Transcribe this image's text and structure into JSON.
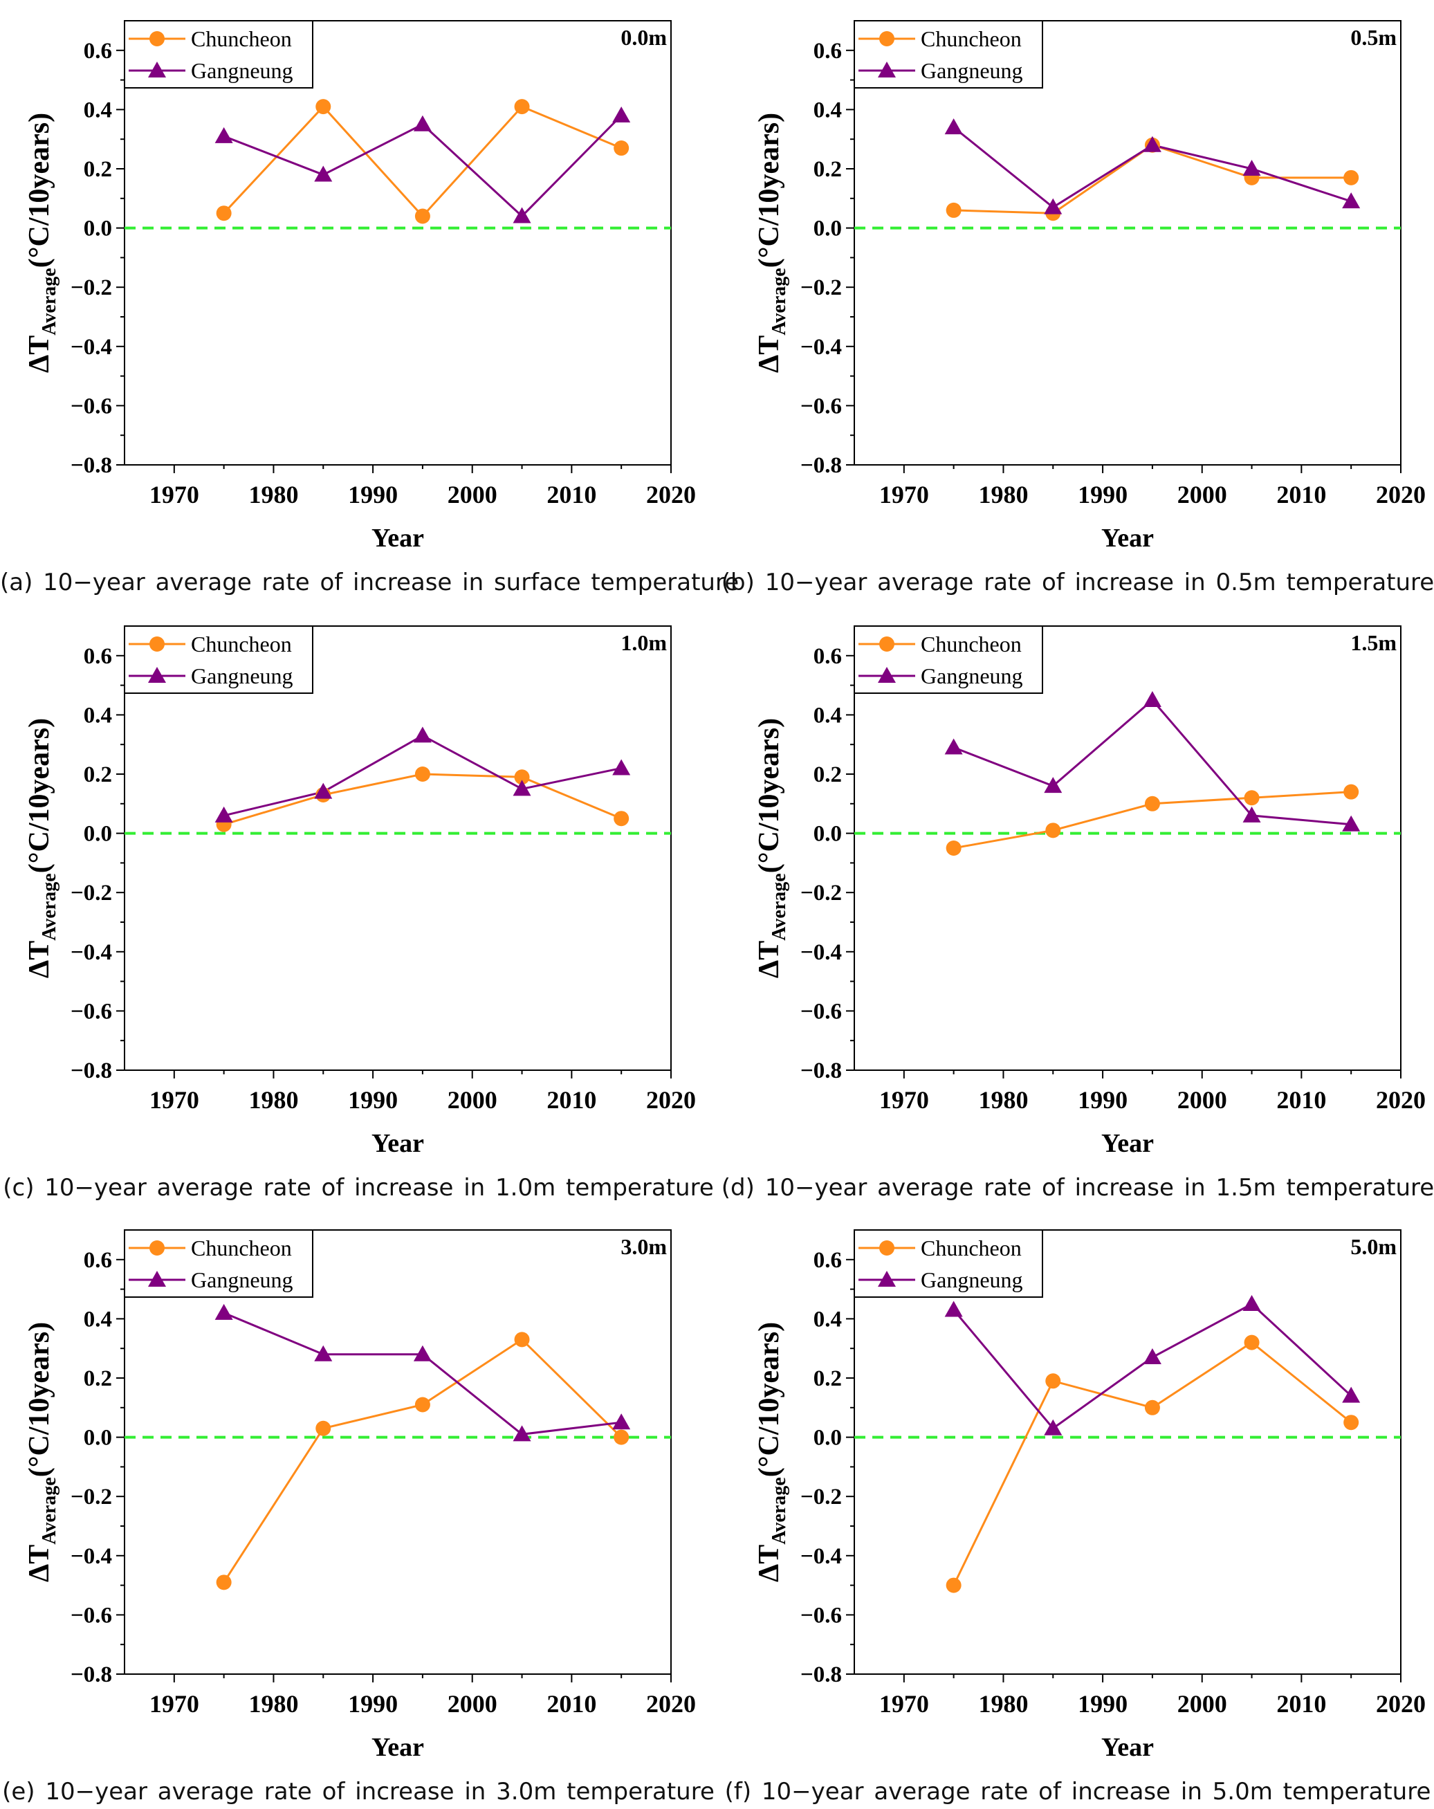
{
  "colors": {
    "chuncheon": "#ff8c1a",
    "gangneung": "#800080",
    "zero_line": "#33ee33",
    "axis": "#000000"
  },
  "shared_axes": {
    "xlabel": "Year",
    "ylabel_prefix": "ΔT",
    "ylabel_sub": "Average",
    "ylabel_suffix": "(°C/10years)",
    "xlim": [
      1965,
      2020
    ],
    "ylim": [
      -0.8,
      0.7
    ],
    "xticks": [
      1970,
      1980,
      1990,
      2000,
      2010,
      2020
    ],
    "yticks": [
      -0.8,
      -0.6,
      -0.4,
      -0.2,
      0.0,
      0.2,
      0.4,
      0.6
    ],
    "ytick_labels": [
      "−0.8",
      "−0.6",
      "−0.4",
      "−0.2",
      "0.0",
      "0.2",
      "0.4",
      "0.6"
    ],
    "legend_position": "top-left",
    "reference_line_y": 0.0
  },
  "chart_data": [
    {
      "type": "line",
      "depth_label": "0.0m",
      "caption": "(a) 10−year average rate of increase in surface temperature",
      "x": [
        1975,
        1985,
        1995,
        2005,
        2015
      ],
      "series": [
        {
          "name": "Chuncheon",
          "marker": "circle",
          "values": [
            0.05,
            0.41,
            0.04,
            0.41,
            0.27
          ]
        },
        {
          "name": "Gangneung",
          "marker": "triangle",
          "values": [
            0.31,
            0.18,
            0.35,
            0.04,
            0.38
          ]
        }
      ]
    },
    {
      "type": "line",
      "depth_label": "0.5m",
      "caption": "(b) 10−year average rate of increase in 0.5m temperature",
      "x": [
        1975,
        1985,
        1995,
        2005,
        2015
      ],
      "series": [
        {
          "name": "Chuncheon",
          "marker": "circle",
          "values": [
            0.06,
            0.05,
            0.28,
            0.17,
            0.17
          ]
        },
        {
          "name": "Gangneung",
          "marker": "triangle",
          "values": [
            0.34,
            0.07,
            0.28,
            0.2,
            0.09
          ]
        }
      ]
    },
    {
      "type": "line",
      "depth_label": "1.0m",
      "caption": "(c) 10−year average rate of increase in 1.0m temperature",
      "x": [
        1975,
        1985,
        1995,
        2005,
        2015
      ],
      "series": [
        {
          "name": "Chuncheon",
          "marker": "circle",
          "values": [
            0.03,
            0.13,
            0.2,
            0.19,
            0.05
          ]
        },
        {
          "name": "Gangneung",
          "marker": "triangle",
          "values": [
            0.06,
            0.14,
            0.33,
            0.15,
            0.22
          ]
        }
      ]
    },
    {
      "type": "line",
      "depth_label": "1.5m",
      "caption": "(d) 10−year average rate of increase in 1.5m temperature",
      "x": [
        1975,
        1985,
        1995,
        2005,
        2015
      ],
      "series": [
        {
          "name": "Chuncheon",
          "marker": "circle",
          "values": [
            -0.05,
            0.01,
            0.1,
            0.12,
            0.14
          ]
        },
        {
          "name": "Gangneung",
          "marker": "triangle",
          "values": [
            0.29,
            0.16,
            0.45,
            0.06,
            0.03
          ]
        }
      ]
    },
    {
      "type": "line",
      "depth_label": "3.0m",
      "caption": "(e) 10−year average rate of increase in 3.0m temperature",
      "x": [
        1975,
        1985,
        1995,
        2005,
        2015
      ],
      "series": [
        {
          "name": "Chuncheon",
          "marker": "circle",
          "values": [
            -0.49,
            0.03,
            0.11,
            0.33,
            0.0
          ]
        },
        {
          "name": "Gangneung",
          "marker": "triangle",
          "values": [
            0.42,
            0.28,
            0.28,
            0.01,
            0.05
          ]
        }
      ]
    },
    {
      "type": "line",
      "depth_label": "5.0m",
      "caption": "(f) 10−year average rate of increase in 5.0m temperature",
      "x": [
        1975,
        1985,
        1995,
        2005,
        2015
      ],
      "series": [
        {
          "name": "Chuncheon",
          "marker": "circle",
          "values": [
            -0.5,
            0.19,
            0.1,
            0.32,
            0.05
          ]
        },
        {
          "name": "Gangneung",
          "marker": "triangle",
          "values": [
            0.43,
            0.03,
            0.27,
            0.45,
            0.14
          ]
        }
      ]
    }
  ]
}
